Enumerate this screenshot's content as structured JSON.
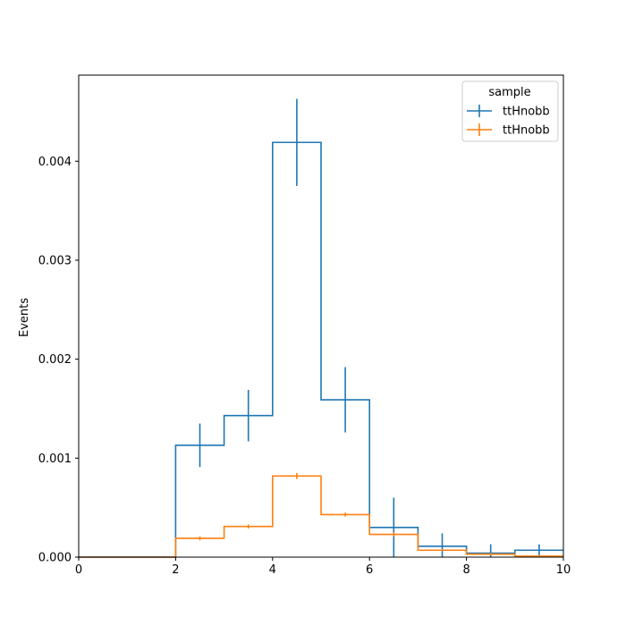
{
  "chart_data": {
    "type": "histogram",
    "title": "",
    "xlabel": "",
    "ylabel": "Events",
    "xlim": [
      0,
      10
    ],
    "ylim": [
      0,
      0.00487
    ],
    "grid": false,
    "bin_edges": [
      0,
      1,
      2,
      3,
      4,
      5,
      6,
      7,
      8,
      9,
      10
    ],
    "x_ticks": [
      0,
      2,
      4,
      6,
      8,
      10
    ],
    "x_tick_labels": [
      "0",
      "2",
      "4",
      "6",
      "8",
      "10"
    ],
    "y_ticks": [
      0,
      0.001,
      0.002,
      0.003,
      0.004
    ],
    "y_tick_labels": [
      "0.000",
      "0.001",
      "0.002",
      "0.003",
      "0.004"
    ],
    "legend": {
      "title": "sample",
      "placement": "top-right"
    },
    "series": [
      {
        "name": "ttHnobb",
        "color": "#1f77b4",
        "values": [
          0,
          0,
          0.00113,
          0.00143,
          0.00419,
          0.00159,
          0.0003,
          0.00011,
          4e-05,
          7e-05
        ],
        "errors": [
          0,
          0,
          0.00022,
          0.00026,
          0.00044,
          0.00033,
          0.0003,
          0.00013,
          9e-05,
          6e-05
        ]
      },
      {
        "name": "ttHnobb",
        "color": "#ff7f0e",
        "values": [
          0,
          0,
          0.00019,
          0.00031,
          0.00082,
          0.00043,
          0.00023,
          7e-05,
          3e-05,
          1e-05
        ],
        "errors": [
          0,
          0,
          2e-05,
          2e-05,
          3e-05,
          2e-05,
          2e-05,
          1e-05,
          1e-05,
          1e-05
        ]
      }
    ]
  }
}
